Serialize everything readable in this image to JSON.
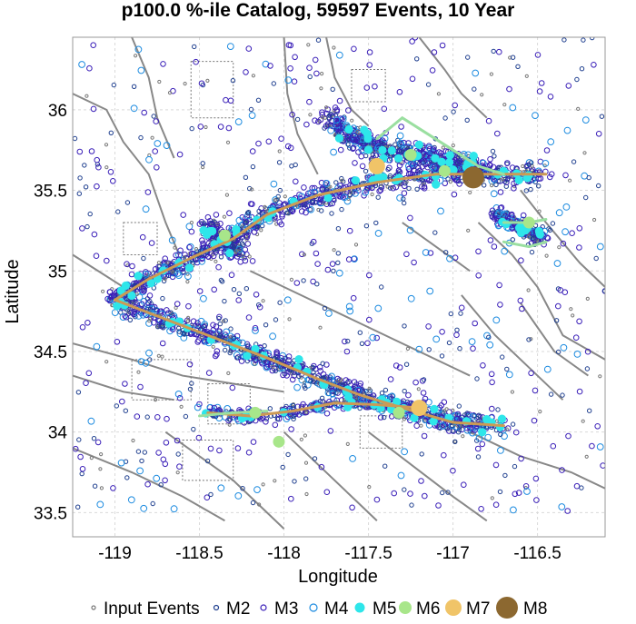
{
  "chart_data": {
    "type": "scatter",
    "title": "p100.0 %-ile Catalog, 59597 Events, 10 Year",
    "xlabel": "Longitude",
    "ylabel": "Latitude",
    "xlim": [
      -119.25,
      -116.1
    ],
    "ylim": [
      33.35,
      36.45
    ],
    "x_ticks": [
      -119,
      -118.5,
      -118,
      -117.5,
      -117,
      -116.5
    ],
    "x_tick_labels": [
      "-119",
      "-118.5",
      "-118",
      "-117.5",
      "-117",
      "-116.5"
    ],
    "y_ticks": [
      33.5,
      34,
      34.5,
      35,
      35.5,
      36
    ],
    "y_tick_labels": [
      "33.5",
      "34",
      "34.5",
      "35",
      "35.5",
      "36"
    ],
    "grid": true,
    "legend_position": "bottom",
    "legend": [
      {
        "label": "Input Events",
        "marker": "open-circle",
        "color": "#777777"
      },
      {
        "label": "M2",
        "marker": "open-circle",
        "color": "#1f3f8f"
      },
      {
        "label": "M3",
        "marker": "open-circle",
        "color": "#3a1fb8"
      },
      {
        "label": "M4",
        "marker": "open-circle",
        "color": "#1e8ce0"
      },
      {
        "label": "M5",
        "marker": "filled-circle",
        "color": "#2ee6ea"
      },
      {
        "label": "M6",
        "marker": "filled-circle",
        "color": "#a8e68a"
      },
      {
        "label": "M7",
        "marker": "filled-circle",
        "color": "#f0c468"
      },
      {
        "label": "M8",
        "marker": "filled-circle",
        "color": "#8c6830"
      }
    ],
    "fault_traces": [
      {
        "color": "#cc9a55",
        "path": [
          [
            -119.0,
            34.82
          ],
          [
            -118.8,
            34.95
          ],
          [
            -118.55,
            35.08
          ],
          [
            -118.3,
            35.2
          ],
          [
            -118.1,
            35.35
          ],
          [
            -117.8,
            35.47
          ],
          [
            -117.45,
            35.55
          ],
          [
            -117.1,
            35.6
          ],
          [
            -116.75,
            35.6
          ],
          [
            -116.45,
            35.6
          ]
        ]
      },
      {
        "color": "#cc9a55",
        "path": [
          [
            -119.0,
            34.82
          ],
          [
            -118.7,
            34.7
          ],
          [
            -118.4,
            34.58
          ],
          [
            -118.1,
            34.46
          ],
          [
            -117.8,
            34.33
          ],
          [
            -117.55,
            34.23
          ],
          [
            -117.3,
            34.15
          ],
          [
            -117.0,
            34.06
          ],
          [
            -116.7,
            34.04
          ]
        ]
      },
      {
        "color": "#cc9a55",
        "path": [
          [
            -118.45,
            34.12
          ],
          [
            -118.2,
            34.1
          ],
          [
            -117.95,
            34.13
          ],
          [
            -117.7,
            34.18
          ],
          [
            -117.45,
            34.17
          ],
          [
            -117.2,
            34.15
          ]
        ]
      },
      {
        "color": "#9adfa0",
        "path": [
          [
            -117.45,
            35.82
          ],
          [
            -117.3,
            35.95
          ],
          [
            -117.15,
            35.85
          ],
          [
            -117.0,
            35.75
          ],
          [
            -116.85,
            35.65
          ],
          [
            -116.7,
            35.6
          ]
        ]
      },
      {
        "color": "#9adfa0",
        "path": [
          [
            -116.7,
            35.3
          ],
          [
            -116.55,
            35.3
          ],
          [
            -116.45,
            35.32
          ]
        ]
      },
      {
        "color": "#9adfa0",
        "path": [
          [
            -116.7,
            35.18
          ],
          [
            -116.55,
            35.15
          ],
          [
            -116.45,
            35.18
          ]
        ]
      },
      {
        "color": "#9adfa0",
        "path": [
          [
            -118.5,
            34.1
          ],
          [
            -118.3,
            34.12
          ],
          [
            -118.1,
            34.13
          ]
        ]
      }
    ],
    "major_events": [
      {
        "lon": -116.88,
        "lat": 35.58,
        "class": "M8"
      },
      {
        "lon": -117.45,
        "lat": 35.65,
        "class": "M7"
      },
      {
        "lon": -117.2,
        "lat": 34.15,
        "class": "M7"
      },
      {
        "lon": -118.35,
        "lat": 35.22,
        "class": "M6"
      },
      {
        "lon": -117.05,
        "lat": 35.62,
        "class": "M6"
      },
      {
        "lon": -117.25,
        "lat": 35.72,
        "class": "M6"
      },
      {
        "lon": -116.55,
        "lat": 35.3,
        "class": "M6"
      },
      {
        "lon": -118.17,
        "lat": 34.12,
        "class": "M6"
      },
      {
        "lon": -118.03,
        "lat": 33.94,
        "class": "M6"
      },
      {
        "lon": -117.32,
        "lat": 34.12,
        "class": "M6"
      }
    ]
  }
}
